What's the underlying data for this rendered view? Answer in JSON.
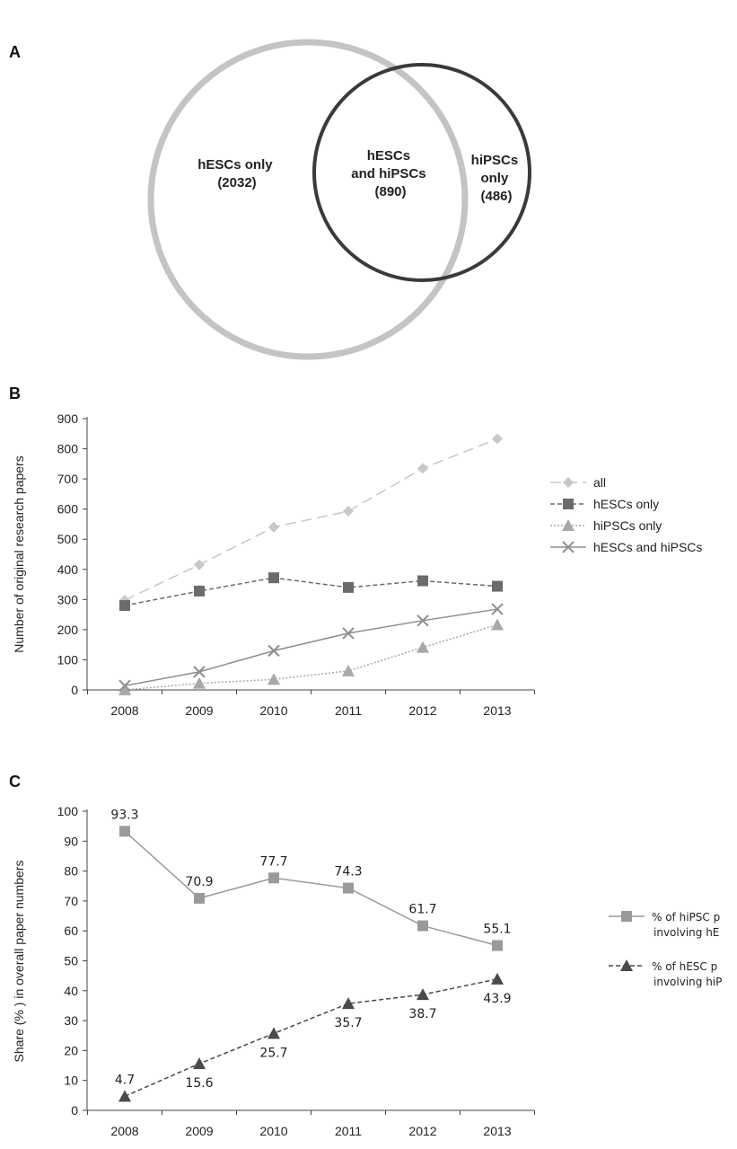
{
  "panels": {
    "a": "A",
    "b": "B",
    "c": "C"
  },
  "venn": {
    "left": {
      "lines": [
        "hESCs only",
        "(2032)"
      ],
      "value": 2032
    },
    "center": {
      "lines": [
        "hESCs",
        "and hiPSCs",
        "(890)"
      ],
      "value": 890
    },
    "right": {
      "lines": [
        "hiPSCs",
        "only",
        "(486)"
      ],
      "value": 486
    }
  },
  "chart_data": [
    {
      "type": "line",
      "categories": [
        "2008",
        "2009",
        "2010",
        "2011",
        "2012",
        "2013"
      ],
      "ylabel": "Number of original research papers",
      "ylim": [
        0,
        900
      ],
      "yticks": [
        0,
        100,
        200,
        300,
        400,
        500,
        600,
        700,
        800,
        900
      ],
      "legend_position": "right",
      "series": [
        {
          "name": "all",
          "values": [
            298,
            415,
            540,
            593,
            735,
            833
          ],
          "color": "#c8c8c8",
          "marker": "diamond",
          "dash": "12,6"
        },
        {
          "name": "hESCs only",
          "values": [
            280,
            328,
            372,
            340,
            362,
            344
          ],
          "color": "#6b6b6b",
          "marker": "square",
          "dash": "5,3"
        },
        {
          "name": "hiPSCs only",
          "values": [
            0,
            22,
            35,
            63,
            141,
            216
          ],
          "color": "#a8a8a8",
          "marker": "triangle",
          "dash": "2,2"
        },
        {
          "name": "hESCs and hiPSCs",
          "values": [
            14,
            60,
            130,
            188,
            230,
            268
          ],
          "color": "#8e8e8e",
          "marker": "x",
          "dash": ""
        }
      ]
    },
    {
      "type": "line",
      "categories": [
        "2008",
        "2009",
        "2010",
        "2011",
        "2012",
        "2013"
      ],
      "ylabel": "Share (% ) in overall paper numbers",
      "ylim": [
        0,
        100
      ],
      "yticks": [
        0,
        10,
        20,
        30,
        40,
        50,
        60,
        70,
        80,
        90,
        100
      ],
      "legend_position": "right",
      "series": [
        {
          "name_lines": [
            "% of hiPSC p",
            "involving hE"
          ],
          "values": [
            93.3,
            70.9,
            77.7,
            74.3,
            61.7,
            55.1
          ],
          "labels": [
            "93.3",
            "70.9",
            "77.7",
            "74.3",
            "61.7",
            "55.1"
          ],
          "label_pos": "above",
          "color": "#9a9a9a",
          "marker": "square",
          "dash": ""
        },
        {
          "name_lines": [
            "% of hESC p",
            "involving hiP"
          ],
          "values": [
            4.7,
            15.6,
            25.7,
            35.7,
            38.7,
            43.9
          ],
          "labels": [
            "4.7",
            "15.6",
            "25.7",
            "35.7",
            "38.7",
            "43.9"
          ],
          "label_pos": [
            "above",
            "below",
            "below",
            "below",
            "below",
            "below"
          ],
          "color": "#4a4a4a",
          "marker": "triangle",
          "dash": "5,3"
        }
      ]
    }
  ]
}
